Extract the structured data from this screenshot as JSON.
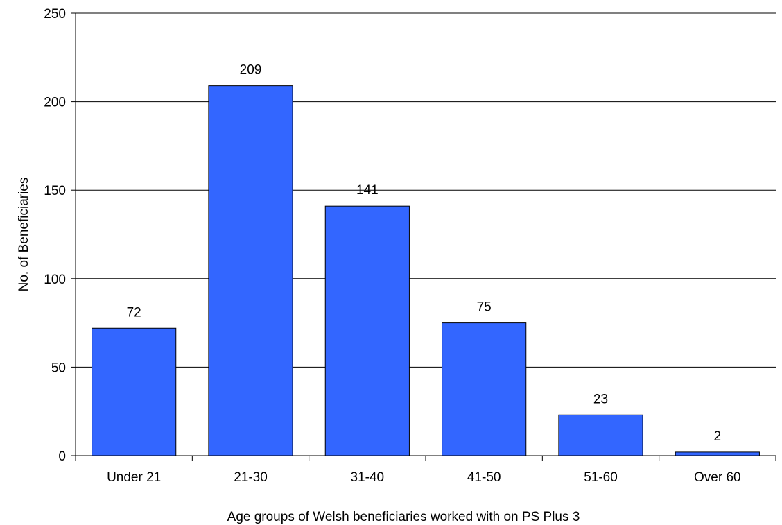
{
  "chart_data": {
    "type": "bar",
    "categories": [
      "Under 21",
      "21-30",
      "31-40",
      "41-50",
      "51-60",
      "Over 60"
    ],
    "values": [
      72,
      209,
      141,
      75,
      23,
      2
    ],
    "data_labels": [
      "72",
      "209",
      "141",
      "75",
      "23",
      "2"
    ],
    "xlabel": "Age groups of Welsh beneficiaries worked with on PS Plus 3",
    "ylabel": "No. of Beneficiaries",
    "ylim": [
      0,
      250
    ],
    "yticks": [
      0,
      50,
      100,
      150,
      200,
      250
    ],
    "ytick_labels": [
      "0",
      "50",
      "100",
      "150",
      "200",
      "250"
    ],
    "grid": true,
    "legend": "none",
    "colors": {
      "bar": "#3366ff",
      "bar_border": "#000000",
      "grid": "#000000",
      "axis": "#000000"
    }
  }
}
